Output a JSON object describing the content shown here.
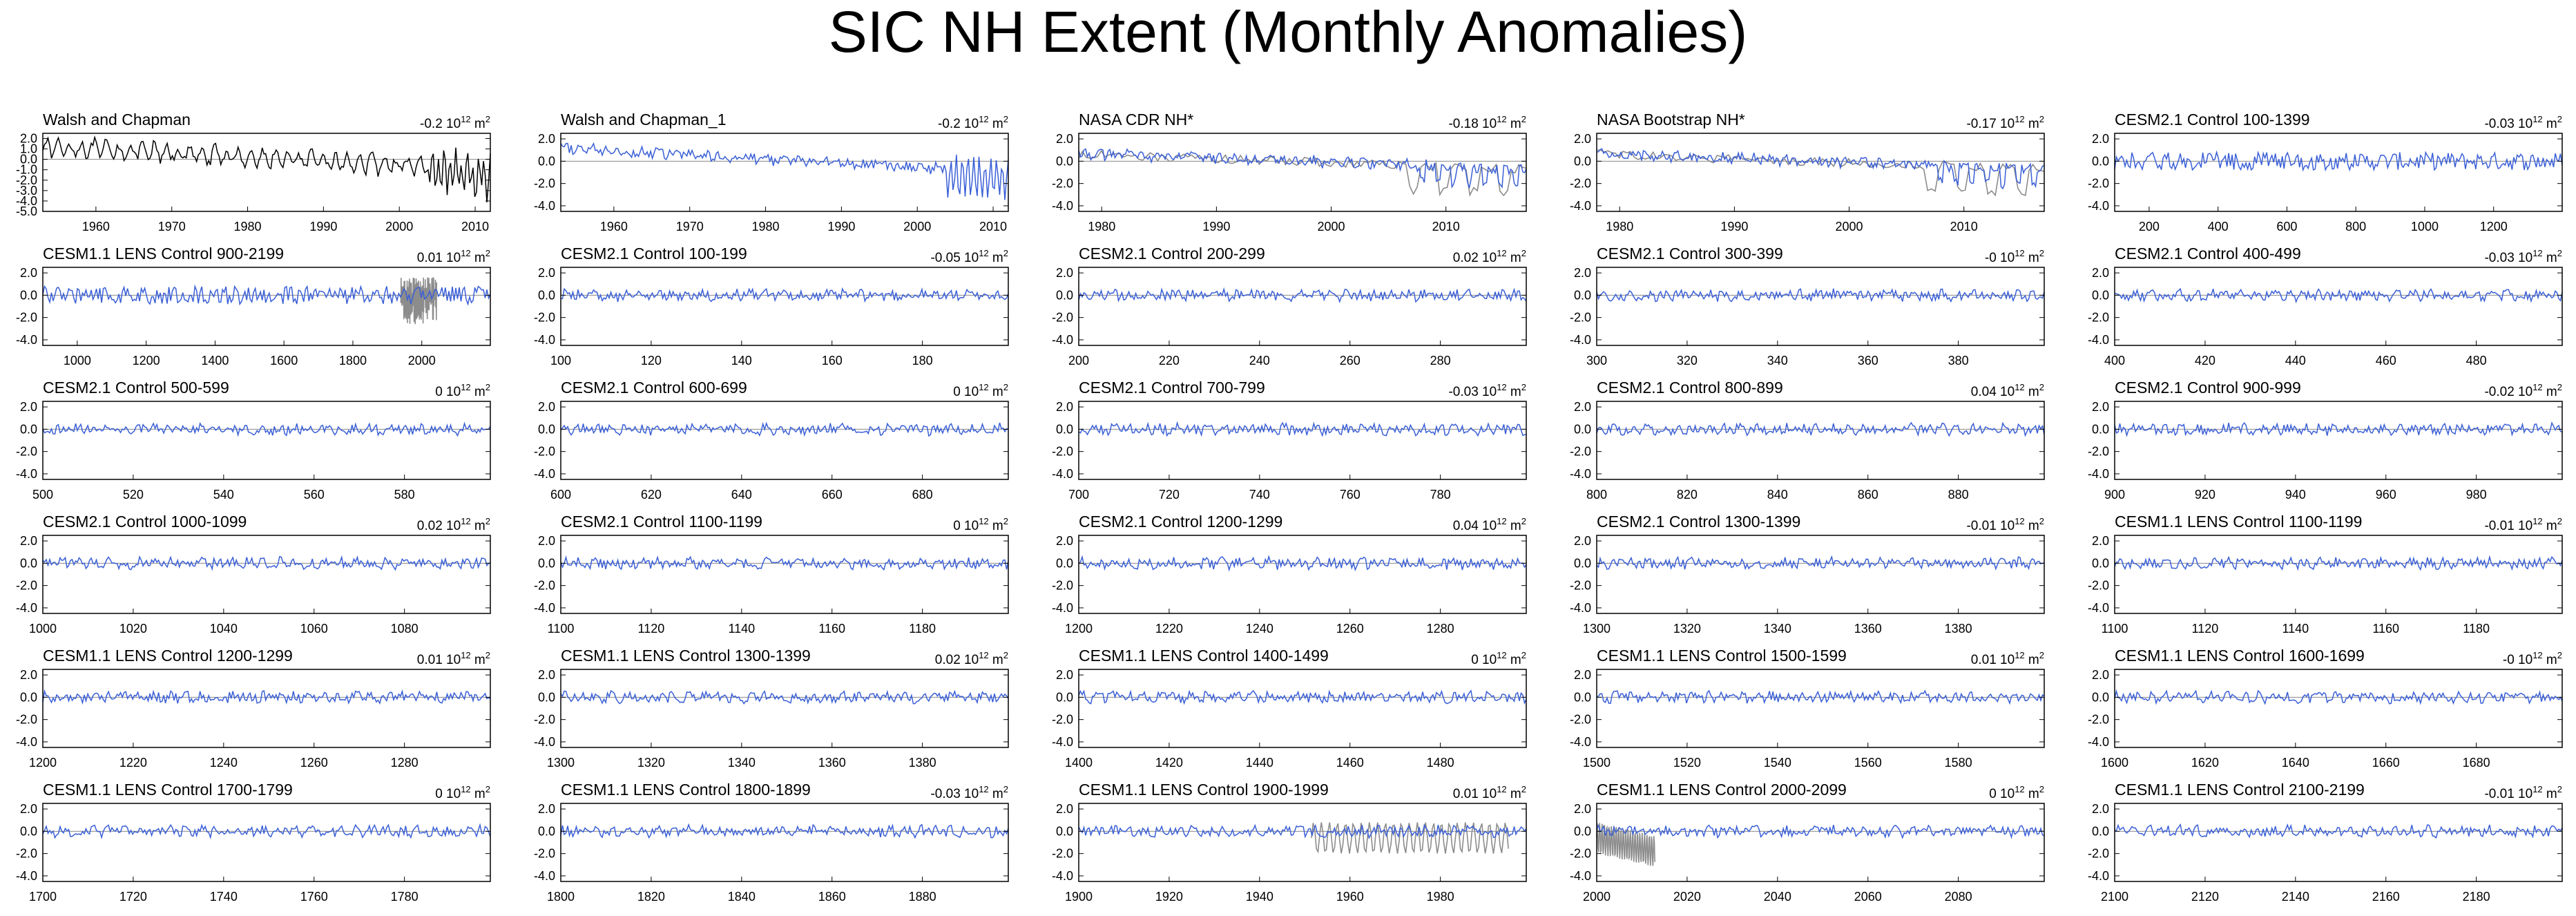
{
  "title": "SIC NH Extent (Monthly Anomalies)",
  "unit_exp": "12",
  "unit_base": "10",
  "unit_m": "m",
  "unit_m_exp": "2",
  "colors": {
    "series": "#3a5fd6",
    "observed": "#000000",
    "reference": "#8c8c8c",
    "zero": "#888888"
  },
  "chart_data": [
    {
      "type": "line",
      "title": "Walsh and Chapman",
      "value": "-0.2",
      "x_ticks": [
        1960,
        1970,
        1980,
        1990,
        2000,
        2010
      ],
      "xlim": [
        1953,
        2012
      ],
      "y_ticks": [
        "2.0",
        "1.0",
        "0.0",
        "-1.0",
        "-2.0",
        "-3.0",
        "-4.0",
        "-5.0"
      ],
      "ylim": [
        -5,
        2.5
      ],
      "series_color": "observed",
      "has_reference": false
    },
    {
      "type": "line",
      "title": "Walsh and Chapman_1",
      "value": "-0.2",
      "x_ticks": [
        1960,
        1970,
        1980,
        1990,
        2000,
        2010
      ],
      "xlim": [
        1953,
        2012
      ],
      "y_ticks": [
        "2.0",
        "0.0",
        "-2.0",
        "-4.0"
      ],
      "ylim": [
        -4.5,
        2.5
      ],
      "series_color": "series",
      "has_reference": false
    },
    {
      "type": "line",
      "title": "NASA CDR NH*",
      "value": "-0.18",
      "x_ticks": [
        1980,
        1990,
        2000,
        2010
      ],
      "xlim": [
        1978,
        2017
      ],
      "y_ticks": [
        "2.0",
        "0.0",
        "-2.0",
        "-4.0"
      ],
      "ylim": [
        -4.5,
        2.5
      ],
      "series_color": "series",
      "has_reference": true
    },
    {
      "type": "line",
      "title": "NASA Bootstrap NH*",
      "value": "-0.17",
      "x_ticks": [
        1980,
        1990,
        2000,
        2010
      ],
      "xlim": [
        1978,
        2017
      ],
      "y_ticks": [
        "2.0",
        "0.0",
        "-2.0",
        "-4.0"
      ],
      "ylim": [
        -4.5,
        2.5
      ],
      "series_color": "series",
      "has_reference": true
    },
    {
      "type": "line",
      "title": "CESM2.1 Control 100-1399",
      "value": "-0.03",
      "x_ticks": [
        200,
        400,
        600,
        800,
        1000,
        1200
      ],
      "xlim": [
        100,
        1399
      ],
      "y_ticks": [
        "2.0",
        "0.0",
        "-2.0",
        "-4.0"
      ],
      "ylim": [
        -4.5,
        2.5
      ],
      "series_color": "series",
      "has_reference": false
    },
    {
      "type": "line",
      "title": "CESM1.1 LENS Control 900-2199",
      "value": "0.01",
      "x_ticks": [
        1000,
        1200,
        1400,
        1600,
        1800,
        2000
      ],
      "xlim": [
        900,
        2199
      ],
      "y_ticks": [
        "2.0",
        "0.0",
        "-2.0",
        "-4.0"
      ],
      "ylim": [
        -4.5,
        2.5
      ],
      "series_color": "series",
      "has_reference": true
    },
    {
      "type": "line",
      "title": "CESM2.1 Control 100-199",
      "value": "-0.05",
      "x_ticks": [
        100,
        120,
        140,
        160,
        180
      ],
      "xlim": [
        100,
        199
      ],
      "y_ticks": [
        "2.0",
        "0.0",
        "-2.0",
        "-4.0"
      ],
      "ylim": [
        -4.5,
        2.5
      ],
      "series_color": "series",
      "has_reference": false
    },
    {
      "type": "line",
      "title": "CESM2.1 Control 200-299",
      "value": "0.02",
      "x_ticks": [
        200,
        220,
        240,
        260,
        280
      ],
      "xlim": [
        200,
        299
      ],
      "y_ticks": [
        "2.0",
        "0.0",
        "-2.0",
        "-4.0"
      ],
      "ylim": [
        -4.5,
        2.5
      ],
      "series_color": "series",
      "has_reference": false
    },
    {
      "type": "line",
      "title": "CESM2.1 Control 300-399",
      "value": "-0",
      "x_ticks": [
        300,
        320,
        340,
        360,
        380
      ],
      "xlim": [
        300,
        399
      ],
      "y_ticks": [
        "2.0",
        "0.0",
        "-2.0",
        "-4.0"
      ],
      "ylim": [
        -4.5,
        2.5
      ],
      "series_color": "series",
      "has_reference": false
    },
    {
      "type": "line",
      "title": "CESM2.1 Control 400-499",
      "value": "-0.03",
      "x_ticks": [
        400,
        420,
        440,
        460,
        480
      ],
      "xlim": [
        400,
        499
      ],
      "y_ticks": [
        "2.0",
        "0.0",
        "-2.0",
        "-4.0"
      ],
      "ylim": [
        -4.5,
        2.5
      ],
      "series_color": "series",
      "has_reference": false
    },
    {
      "type": "line",
      "title": "CESM2.1 Control 500-599",
      "value": "0",
      "x_ticks": [
        500,
        520,
        540,
        560,
        580
      ],
      "xlim": [
        500,
        599
      ],
      "y_ticks": [
        "2.0",
        "0.0",
        "-2.0",
        "-4.0"
      ],
      "ylim": [
        -4.5,
        2.5
      ],
      "series_color": "series",
      "has_reference": false
    },
    {
      "type": "line",
      "title": "CESM2.1 Control 600-699",
      "value": "0",
      "x_ticks": [
        600,
        620,
        640,
        660,
        680
      ],
      "xlim": [
        600,
        699
      ],
      "y_ticks": [
        "2.0",
        "0.0",
        "-2.0",
        "-4.0"
      ],
      "ylim": [
        -4.5,
        2.5
      ],
      "series_color": "series",
      "has_reference": false
    },
    {
      "type": "line",
      "title": "CESM2.1 Control 700-799",
      "value": "-0.03",
      "x_ticks": [
        700,
        720,
        740,
        760,
        780
      ],
      "xlim": [
        700,
        799
      ],
      "y_ticks": [
        "2.0",
        "0.0",
        "-2.0",
        "-4.0"
      ],
      "ylim": [
        -4.5,
        2.5
      ],
      "series_color": "series",
      "has_reference": false
    },
    {
      "type": "line",
      "title": "CESM2.1 Control 800-899",
      "value": "0.04",
      "x_ticks": [
        800,
        820,
        840,
        860,
        880
      ],
      "xlim": [
        800,
        899
      ],
      "y_ticks": [
        "2.0",
        "0.0",
        "-2.0",
        "-4.0"
      ],
      "ylim": [
        -4.5,
        2.5
      ],
      "series_color": "series",
      "has_reference": false
    },
    {
      "type": "line",
      "title": "CESM2.1 Control 900-999",
      "value": "-0.02",
      "x_ticks": [
        900,
        920,
        940,
        960,
        980
      ],
      "xlim": [
        900,
        999
      ],
      "y_ticks": [
        "2.0",
        "0.0",
        "-2.0",
        "-4.0"
      ],
      "ylim": [
        -4.5,
        2.5
      ],
      "series_color": "series",
      "has_reference": false
    },
    {
      "type": "line",
      "title": "CESM2.1 Control 1000-1099",
      "value": "0.02",
      "x_ticks": [
        1000,
        1020,
        1040,
        1060,
        1080
      ],
      "xlim": [
        1000,
        1099
      ],
      "y_ticks": [
        "2.0",
        "0.0",
        "-2.0",
        "-4.0"
      ],
      "ylim": [
        -4.5,
        2.5
      ],
      "series_color": "series",
      "has_reference": false
    },
    {
      "type": "line",
      "title": "CESM2.1 Control 1100-1199",
      "value": "0",
      "x_ticks": [
        1100,
        1120,
        1140,
        1160,
        1180
      ],
      "xlim": [
        1100,
        1199
      ],
      "y_ticks": [
        "2.0",
        "0.0",
        "-2.0",
        "-4.0"
      ],
      "ylim": [
        -4.5,
        2.5
      ],
      "series_color": "series",
      "has_reference": false
    },
    {
      "type": "line",
      "title": "CESM2.1 Control 1200-1299",
      "value": "0.04",
      "x_ticks": [
        1200,
        1220,
        1240,
        1260,
        1280
      ],
      "xlim": [
        1200,
        1299
      ],
      "y_ticks": [
        "2.0",
        "0.0",
        "-2.0",
        "-4.0"
      ],
      "ylim": [
        -4.5,
        2.5
      ],
      "series_color": "series",
      "has_reference": false
    },
    {
      "type": "line",
      "title": "CESM2.1 Control 1300-1399",
      "value": "-0.01",
      "x_ticks": [
        1300,
        1320,
        1340,
        1360,
        1380
      ],
      "xlim": [
        1300,
        1399
      ],
      "y_ticks": [
        "2.0",
        "0.0",
        "-2.0",
        "-4.0"
      ],
      "ylim": [
        -4.5,
        2.5
      ],
      "series_color": "series",
      "has_reference": false
    },
    {
      "type": "line",
      "title": "CESM1.1 LENS Control 1100-1199",
      "value": "-0.01",
      "x_ticks": [
        1100,
        1120,
        1140,
        1160,
        1180
      ],
      "xlim": [
        1100,
        1199
      ],
      "y_ticks": [
        "2.0",
        "0.0",
        "-2.0",
        "-4.0"
      ],
      "ylim": [
        -4.5,
        2.5
      ],
      "series_color": "series",
      "has_reference": false
    },
    {
      "type": "line",
      "title": "CESM1.1 LENS Control 1200-1299",
      "value": "0.01",
      "x_ticks": [
        1200,
        1220,
        1240,
        1260,
        1280
      ],
      "xlim": [
        1200,
        1299
      ],
      "y_ticks": [
        "2.0",
        "0.0",
        "-2.0",
        "-4.0"
      ],
      "ylim": [
        -4.5,
        2.5
      ],
      "series_color": "series",
      "has_reference": false
    },
    {
      "type": "line",
      "title": "CESM1.1 LENS Control 1300-1399",
      "value": "0.02",
      "x_ticks": [
        1300,
        1320,
        1340,
        1360,
        1380
      ],
      "xlim": [
        1300,
        1399
      ],
      "y_ticks": [
        "2.0",
        "0.0",
        "-2.0",
        "-4.0"
      ],
      "ylim": [
        -4.5,
        2.5
      ],
      "series_color": "series",
      "has_reference": false
    },
    {
      "type": "line",
      "title": "CESM1.1 LENS Control 1400-1499",
      "value": "0",
      "x_ticks": [
        1400,
        1420,
        1440,
        1460,
        1480
      ],
      "xlim": [
        1400,
        1499
      ],
      "y_ticks": [
        "2.0",
        "0.0",
        "-2.0",
        "-4.0"
      ],
      "ylim": [
        -4.5,
        2.5
      ],
      "series_color": "series",
      "has_reference": false
    },
    {
      "type": "line",
      "title": "CESM1.1 LENS Control 1500-1599",
      "value": "0.01",
      "x_ticks": [
        1500,
        1520,
        1540,
        1560,
        1580
      ],
      "xlim": [
        1500,
        1599
      ],
      "y_ticks": [
        "2.0",
        "0.0",
        "-2.0",
        "-4.0"
      ],
      "ylim": [
        -4.5,
        2.5
      ],
      "series_color": "series",
      "has_reference": false
    },
    {
      "type": "line",
      "title": "CESM1.1 LENS Control 1600-1699",
      "value": "-0",
      "x_ticks": [
        1600,
        1620,
        1640,
        1660,
        1680
      ],
      "xlim": [
        1600,
        1699
      ],
      "y_ticks": [
        "2.0",
        "0.0",
        "-2.0",
        "-4.0"
      ],
      "ylim": [
        -4.5,
        2.5
      ],
      "series_color": "series",
      "has_reference": false
    },
    {
      "type": "line",
      "title": "CESM1.1 LENS Control 1700-1799",
      "value": "0",
      "x_ticks": [
        1700,
        1720,
        1740,
        1760,
        1780
      ],
      "xlim": [
        1700,
        1799
      ],
      "y_ticks": [
        "2.0",
        "0.0",
        "-2.0",
        "-4.0"
      ],
      "ylim": [
        -4.5,
        2.5
      ],
      "series_color": "series",
      "has_reference": false
    },
    {
      "type": "line",
      "title": "CESM1.1 LENS Control 1800-1899",
      "value": "-0.03",
      "x_ticks": [
        1800,
        1820,
        1840,
        1860,
        1880
      ],
      "xlim": [
        1800,
        1899
      ],
      "y_ticks": [
        "2.0",
        "0.0",
        "-2.0",
        "-4.0"
      ],
      "ylim": [
        -4.5,
        2.5
      ],
      "series_color": "series",
      "has_reference": false
    },
    {
      "type": "line",
      "title": "CESM1.1 LENS Control 1900-1999",
      "value": "0.01",
      "x_ticks": [
        1900,
        1920,
        1940,
        1960,
        1980
      ],
      "xlim": [
        1900,
        1999
      ],
      "y_ticks": [
        "2.0",
        "0.0",
        "-2.0",
        "-4.0"
      ],
      "ylim": [
        -4.5,
        2.5
      ],
      "series_color": "series",
      "has_reference": true
    },
    {
      "type": "line",
      "title": "CESM1.1 LENS Control 2000-2099",
      "value": "0",
      "x_ticks": [
        2000,
        2020,
        2040,
        2060,
        2080
      ],
      "xlim": [
        2000,
        2099
      ],
      "y_ticks": [
        "2.0",
        "0.0",
        "-2.0",
        "-4.0"
      ],
      "ylim": [
        -4.5,
        2.5
      ],
      "series_color": "series",
      "has_reference": true
    },
    {
      "type": "line",
      "title": "CESM1.1 LENS Control 2100-2199",
      "value": "-0.01",
      "x_ticks": [
        2100,
        2120,
        2140,
        2160,
        2180
      ],
      "xlim": [
        2100,
        2199
      ],
      "y_ticks": [
        "2.0",
        "0.0",
        "-2.0",
        "-4.0"
      ],
      "ylim": [
        -4.5,
        2.5
      ],
      "series_color": "series",
      "has_reference": false
    }
  ]
}
